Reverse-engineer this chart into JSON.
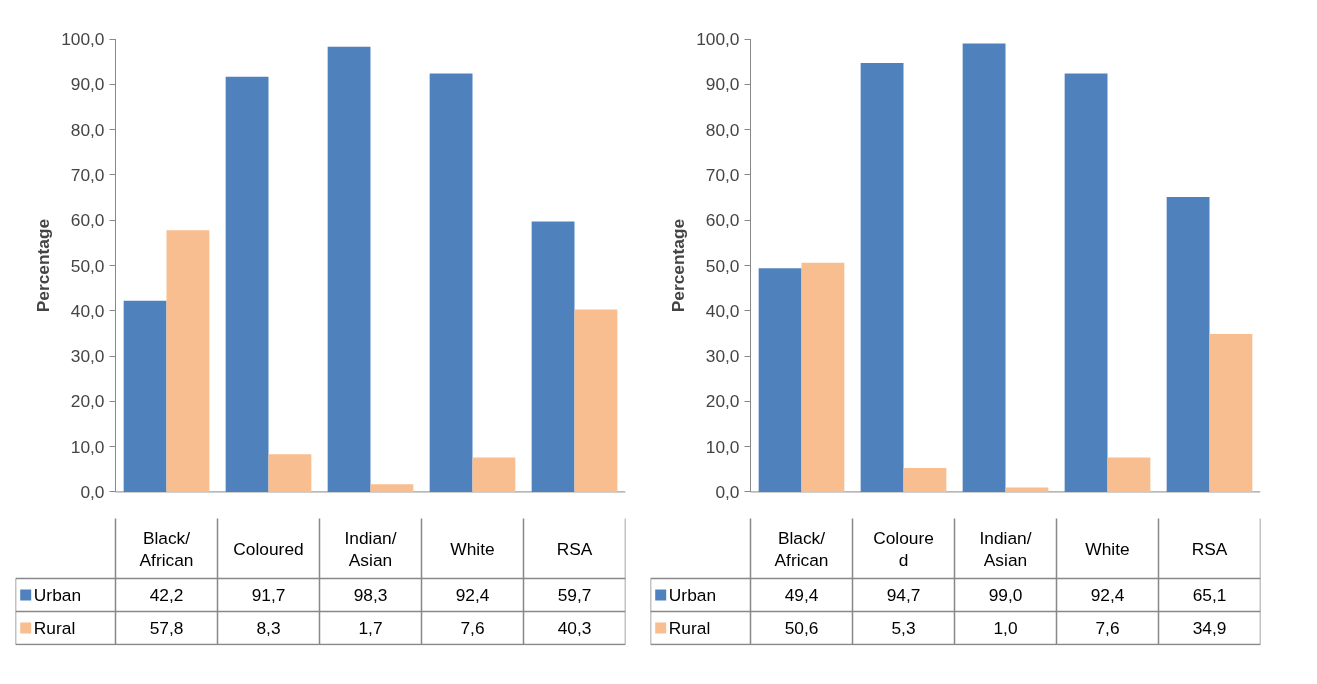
{
  "chart_data": [
    {
      "type": "bar",
      "ylabel": "Percentage",
      "categories": [
        "Black/\nAfrican",
        "Coloured",
        "Indian/\nAsian",
        "White",
        "RSA"
      ],
      "series": [
        {
          "name": "Urban",
          "color": "#4f81bd",
          "values": [
            42.2,
            91.7,
            98.3,
            92.4,
            59.7
          ],
          "value_labels": [
            "42,2",
            "91,7",
            "98,3",
            "92,4",
            "59,7"
          ]
        },
        {
          "name": "Rural",
          "color": "#f9be8f",
          "values": [
            57.8,
            8.3,
            1.7,
            7.6,
            40.3
          ],
          "value_labels": [
            "57,8",
            "8,3",
            "1,7",
            "7,6",
            "40,3"
          ]
        }
      ],
      "ylim": [
        0,
        100
      ],
      "yticks": [
        {
          "value": 0,
          "label": "0,0"
        },
        {
          "value": 10,
          "label": "10,0"
        },
        {
          "value": 20,
          "label": "20,0"
        },
        {
          "value": 30,
          "label": "30,0"
        },
        {
          "value": 40,
          "label": "40,0"
        },
        {
          "value": 50,
          "label": "50,0"
        },
        {
          "value": 60,
          "label": "60,0"
        },
        {
          "value": 70,
          "label": "70,0"
        },
        {
          "value": 80,
          "label": "80,0"
        },
        {
          "value": 90,
          "label": "90,0"
        },
        {
          "value": 100,
          "label": "100,0"
        }
      ],
      "grid": false,
      "legend": "bottom"
    },
    {
      "type": "bar",
      "ylabel": "Percentage",
      "categories": [
        "Black/\nAfrican",
        "Coloure\nd",
        "Indian/\nAsian",
        "White",
        "RSA"
      ],
      "series": [
        {
          "name": "Urban",
          "color": "#4f81bd",
          "values": [
            49.4,
            94.7,
            99.0,
            92.4,
            65.1
          ],
          "value_labels": [
            "49,4",
            "94,7",
            "99,0",
            "92,4",
            "65,1"
          ]
        },
        {
          "name": "Rural",
          "color": "#f9be8f",
          "values": [
            50.6,
            5.3,
            1.0,
            7.6,
            34.9
          ],
          "value_labels": [
            "50,6",
            "5,3",
            "1,0",
            "7,6",
            "34,9"
          ]
        }
      ],
      "ylim": [
        0,
        100
      ],
      "yticks": [
        {
          "value": 0,
          "label": "0,0"
        },
        {
          "value": 10,
          "label": "10,0"
        },
        {
          "value": 20,
          "label": "20,0"
        },
        {
          "value": 30,
          "label": "30,0"
        },
        {
          "value": 40,
          "label": "40,0"
        },
        {
          "value": 50,
          "label": "50,0"
        },
        {
          "value": 60,
          "label": "60,0"
        },
        {
          "value": 70,
          "label": "70,0"
        },
        {
          "value": 80,
          "label": "80,0"
        },
        {
          "value": 90,
          "label": "90,0"
        },
        {
          "value": 100,
          "label": "100,0"
        }
      ],
      "grid": false,
      "legend": "bottom"
    }
  ]
}
